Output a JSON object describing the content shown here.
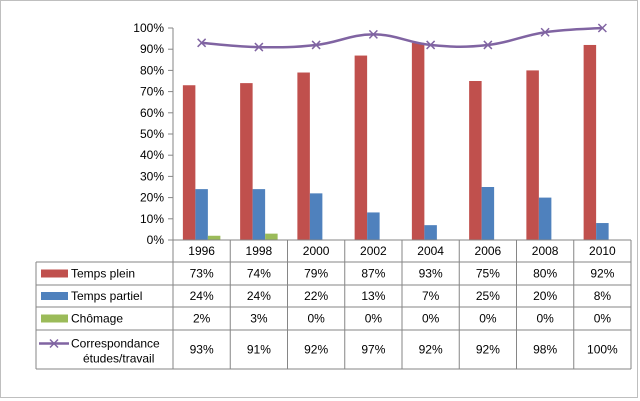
{
  "chart_data": {
    "type": "bar",
    "categories": [
      "1996",
      "1998",
      "2000",
      "2002",
      "2004",
      "2006",
      "2008",
      "2010"
    ],
    "y_ticks": [
      "0%",
      "10%",
      "20%",
      "30%",
      "40%",
      "50%",
      "60%",
      "70%",
      "80%",
      "90%",
      "100%"
    ],
    "ylim": [
      0,
      100
    ],
    "grid": false,
    "legend_placement": "data-table",
    "series": [
      {
        "name": "Temps plein",
        "kind": "bar",
        "color": "#c0504d",
        "values": [
          73,
          74,
          79,
          87,
          93,
          75,
          80,
          92
        ],
        "labels": [
          "73%",
          "74%",
          "79%",
          "87%",
          "93%",
          "75%",
          "80%",
          "92%"
        ]
      },
      {
        "name": "Temps partiel",
        "kind": "bar",
        "color": "#4f81bd",
        "values": [
          24,
          24,
          22,
          13,
          7,
          25,
          20,
          8
        ],
        "labels": [
          "24%",
          "24%",
          "22%",
          "13%",
          "7%",
          "25%",
          "20%",
          "8%"
        ]
      },
      {
        "name": "Chômage",
        "kind": "bar",
        "color": "#9bbb59",
        "values": [
          2,
          3,
          0,
          0,
          0,
          0,
          0,
          0
        ],
        "labels": [
          "2%",
          "3%",
          "0%",
          "0%",
          "0%",
          "0%",
          "0%",
          "0%"
        ]
      },
      {
        "name_lines": [
          "Correspondance",
          "études/travail"
        ],
        "kind": "line",
        "color": "#8064a2",
        "marker": "x",
        "smooth": true,
        "values": [
          93,
          91,
          92,
          97,
          92,
          92,
          98,
          100
        ],
        "labels": [
          "93%",
          "91%",
          "92%",
          "97%",
          "92%",
          "92%",
          "98%",
          "100%"
        ]
      }
    ]
  }
}
